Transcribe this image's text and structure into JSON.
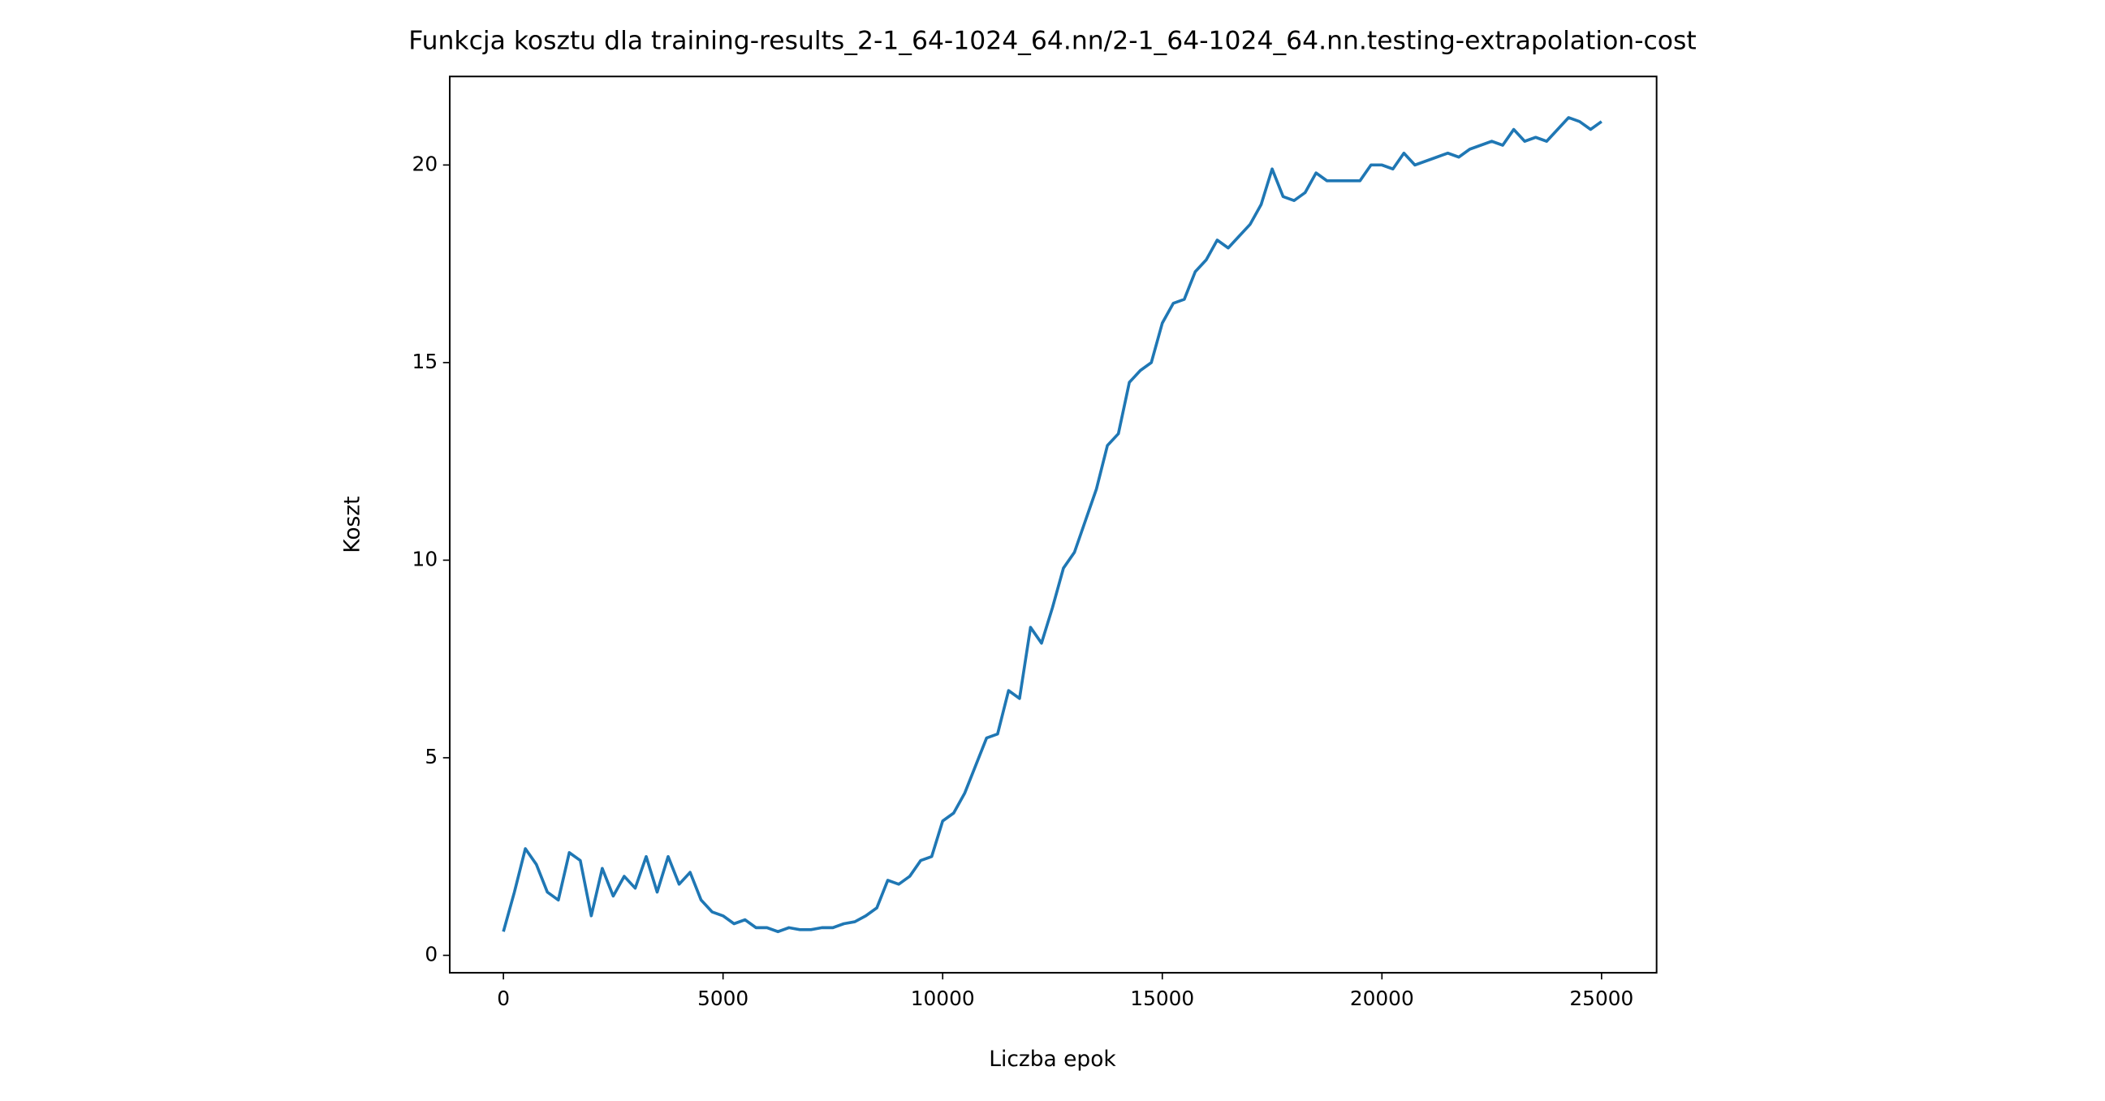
{
  "chart_data": {
    "type": "line",
    "title": "Funkcja kosztu dla training-results_2-1_64-1024_64.nn/2-1_64-1024_64.nn.testing-extrapolation-cost",
    "x_label": "Liczba epok",
    "y_label": "Koszt",
    "xlim": [
      -1222,
      26253
    ],
    "ylim": [
      -0.44,
      22.24
    ],
    "xticks": [
      0,
      5000,
      10000,
      15000,
      20000,
      25000
    ],
    "yticks": [
      0,
      5,
      10,
      15,
      20
    ],
    "x": [
      0,
      250,
      500,
      750,
      1000,
      1250,
      1500,
      1750,
      2000,
      2250,
      2500,
      2750,
      3000,
      3250,
      3500,
      3750,
      4000,
      4250,
      4500,
      4750,
      5000,
      5250,
      5500,
      5750,
      6000,
      6250,
      6500,
      6750,
      7000,
      7250,
      7500,
      7750,
      8000,
      8250,
      8500,
      8750,
      9000,
      9250,
      9500,
      9750,
      10000,
      10250,
      10500,
      10750,
      11000,
      11250,
      11500,
      11750,
      12000,
      12250,
      12500,
      12750,
      13000,
      13250,
      13500,
      13750,
      14000,
      14250,
      14500,
      14750,
      15000,
      15250,
      15500,
      15750,
      16000,
      16250,
      16500,
      16750,
      17000,
      17250,
      17500,
      17750,
      18000,
      18250,
      18500,
      18750,
      19000,
      19250,
      19500,
      19750,
      20000,
      20250,
      20500,
      20750,
      21000,
      21250,
      21500,
      21750,
      22000,
      22250,
      22500,
      22750,
      23000,
      23250,
      23500,
      23750,
      24000,
      24250,
      24500,
      24750,
      25000
    ],
    "series": [
      {
        "name": "Koszt",
        "color": "#1f77b4",
        "values": [
          0.6,
          1.6,
          2.7,
          2.3,
          1.6,
          1.4,
          2.6,
          2.4,
          1.0,
          2.2,
          1.5,
          2.0,
          1.7,
          2.5,
          1.6,
          2.5,
          1.8,
          2.1,
          1.4,
          1.1,
          1.0,
          0.8,
          0.9,
          0.7,
          0.7,
          0.6,
          0.7,
          0.65,
          0.65,
          0.7,
          0.7,
          0.8,
          0.85,
          1.0,
          1.2,
          1.9,
          1.8,
          2.0,
          2.4,
          2.5,
          3.4,
          3.6,
          4.1,
          4.8,
          5.5,
          5.6,
          6.7,
          6.5,
          8.3,
          7.9,
          8.8,
          9.8,
          10.2,
          11.0,
          11.8,
          12.9,
          13.2,
          14.5,
          14.8,
          15.0,
          16.0,
          16.5,
          16.6,
          17.3,
          17.6,
          18.1,
          17.9,
          18.2,
          18.5,
          19.0,
          19.9,
          19.2,
          19.1,
          19.3,
          19.8,
          19.6,
          19.6,
          19.6,
          19.6,
          20.0,
          20.0,
          19.9,
          20.3,
          20.0,
          20.1,
          20.2,
          20.3,
          20.2,
          20.4,
          20.5,
          20.6,
          20.5,
          20.9,
          20.6,
          20.7,
          20.6,
          20.9,
          21.2,
          21.1,
          20.9,
          21.1
        ]
      }
    ]
  }
}
